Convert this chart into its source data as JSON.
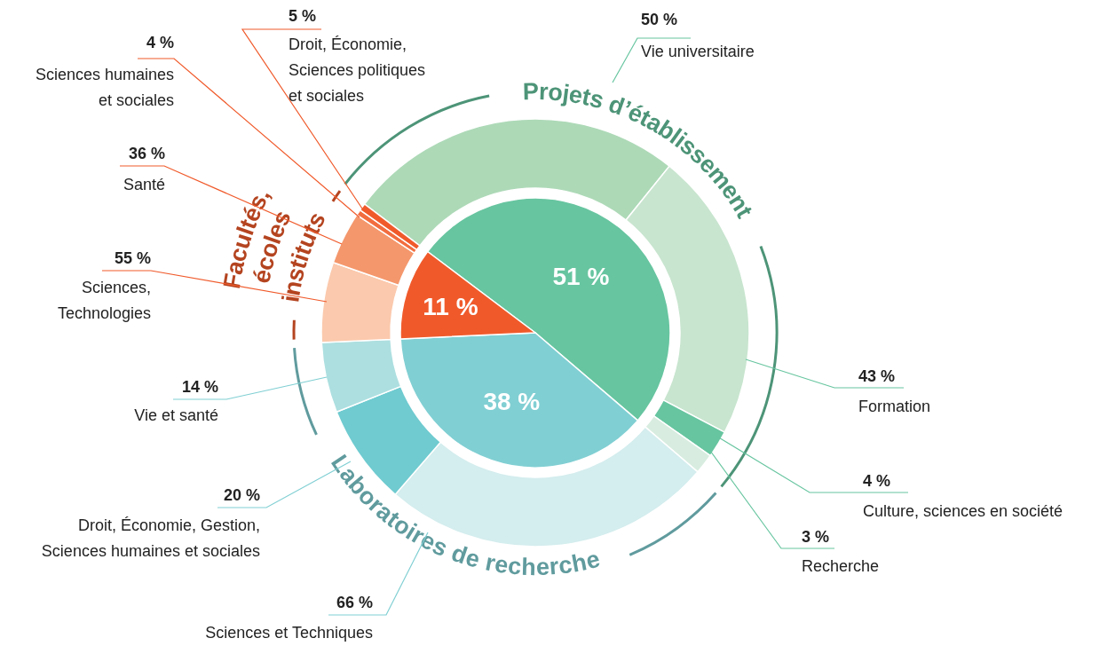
{
  "chart_data": [
    {
      "type": "pie",
      "categories": [
        "Projets d’établissement",
        "Laboratoires de recherche",
        "Facultés, écoles instituts"
      ],
      "values": [
        51,
        38,
        11
      ],
      "value_labels": [
        "51 %",
        "38 %",
        "11 %"
      ],
      "colors": [
        "#67c5a0",
        "#80cfd3",
        "#f05a2b"
      ]
    },
    {
      "type": "donut",
      "categories": [
        "Vie universitaire",
        "Formation",
        "Culture, sciences en société",
        "Recherche"
      ],
      "values": [
        50,
        43,
        4,
        3
      ],
      "value_labels": [
        "50 %",
        "43 %",
        "4 %",
        "3 %"
      ],
      "colors": [
        "#add9b7",
        "#c8e5cf",
        "#67c5a0",
        "#d8ede0"
      ]
    },
    {
      "type": "donut",
      "categories": [
        "Sciences et Techniques",
        "Droit, Économie, Gestion, Sciences humaines et sociales",
        "Vie et santé"
      ],
      "values": [
        66,
        20,
        14
      ],
      "value_labels": [
        "66 %",
        "20 %",
        "14 %"
      ],
      "colors": [
        "#d4edee",
        "#6fcbd0",
        "#addfe0"
      ]
    },
    {
      "type": "donut",
      "categories": [
        "Sciences, Technologies",
        "Santé",
        "Sciences humaines et sociales",
        "Droit, Économie, Sciences politiques et sociales"
      ],
      "values": [
        55,
        36,
        4,
        5
      ],
      "value_labels": [
        "55 %",
        "36 %",
        "4 %",
        "5 %"
      ],
      "colors": [
        "#fbc9ad",
        "#f4976c",
        "#f26d3f",
        "#f05a2b"
      ]
    }
  ]
}
